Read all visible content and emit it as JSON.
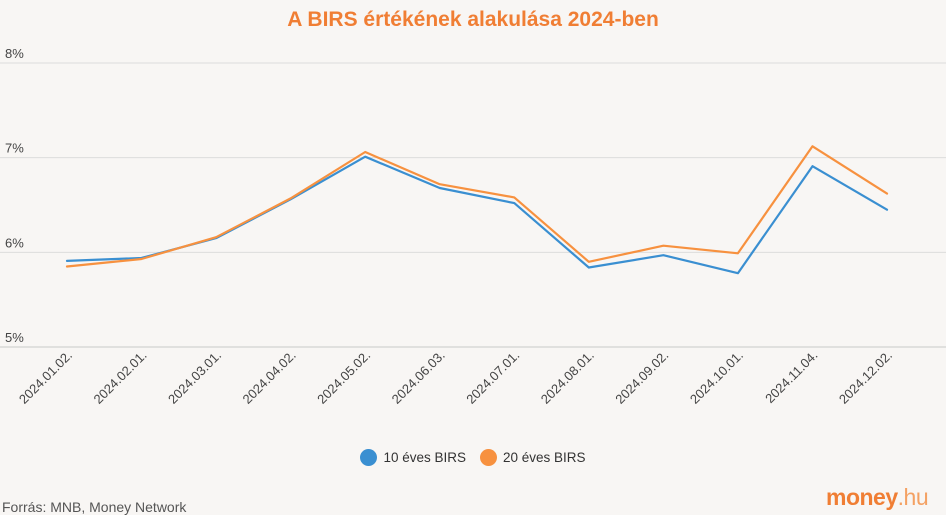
{
  "chart_data": {
    "type": "line",
    "title": "A BIRS értékének alakulása 2024-ben",
    "categories": [
      "2024.01.02.",
      "2024.02.01.",
      "2024.03.01.",
      "2024.04.02.",
      "2024.05.02.",
      "2024.06.03.",
      "2024.07.01.",
      "2024.08.01.",
      "2024.09.02.",
      "2024.10.01.",
      "2024.11.04.",
      "2024.12.02."
    ],
    "series": [
      {
        "name": "10 éves BIRS",
        "color": "#3a8fd1",
        "values": [
          5.91,
          5.94,
          6.15,
          6.56,
          7.01,
          6.68,
          6.52,
          5.84,
          5.97,
          5.78,
          6.91,
          6.45
        ]
      },
      {
        "name": "20 éves BIRS",
        "color": "#f7913f",
        "values": [
          5.85,
          5.93,
          6.16,
          6.57,
          7.06,
          6.72,
          6.58,
          5.9,
          6.07,
          5.99,
          7.12,
          6.62
        ]
      }
    ],
    "ylim": [
      5,
      8
    ],
    "yticks": [
      "5%",
      "6%",
      "7%",
      "8%"
    ],
    "grid": true,
    "legend": "bottom"
  },
  "source": "Forrás: MNB, Money Network",
  "logo": {
    "main": "money",
    "tld": ".hu"
  }
}
